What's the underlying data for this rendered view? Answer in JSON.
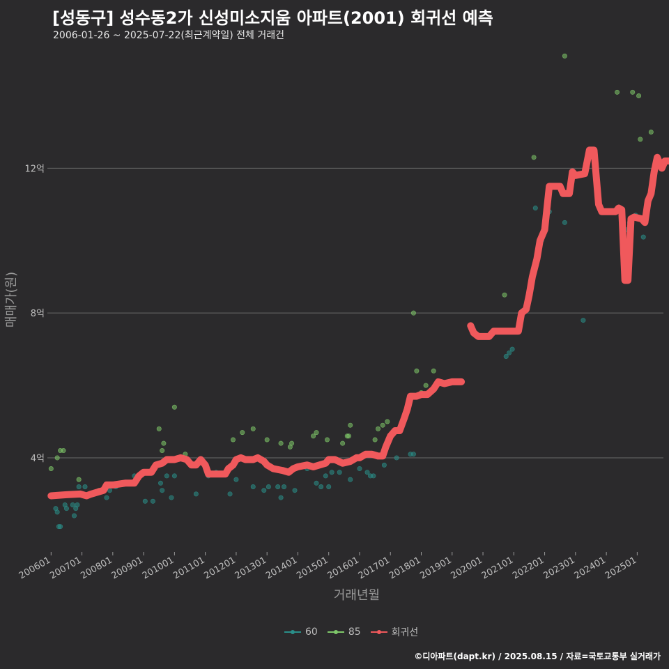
{
  "title": "[성동구] 성수동2가 신성미소지움 아파트(2001) 회귀선 예측",
  "subtitle": "2006-01-26 ~ 2025-07-22(최근계약일) 전체 거래건",
  "caption": "©디아파트(dapt.kr) / 2025.08.15 / 자료=국토교통부 실거래가",
  "colors": {
    "background": "#2b2a2c",
    "grid": "#6a6a6a",
    "s60": "#2a8f8a",
    "s85": "#7fc86a",
    "regression": "#f0595c"
  },
  "legend": [
    {
      "label": "60",
      "color": "#2a8f8a"
    },
    {
      "label": "85",
      "color": "#7fc86a"
    },
    {
      "label": "회귀선",
      "color": "#f0595c"
    }
  ],
  "chart_data": {
    "type": "scatter",
    "xlabel": "거래년월",
    "ylabel": "매매가(원)",
    "x_ticks": [
      "200601",
      "200701",
      "200801",
      "200901",
      "201001",
      "201101",
      "201201",
      "201301",
      "201401",
      "201501",
      "201601",
      "201701",
      "201801",
      "201901",
      "202001",
      "202101",
      "202201",
      "202301",
      "202401",
      "202501"
    ],
    "y_ticks": [
      {
        "value": 4,
        "label": "4억"
      },
      {
        "value": 8,
        "label": "8억"
      },
      {
        "value": 12,
        "label": "12억"
      }
    ],
    "xlim": [
      2005.88,
      2025.85
    ],
    "ylim": [
      1.4,
      15.3
    ],
    "y_unit": "억",
    "series": [
      {
        "name": "60",
        "points": [
          [
            2006.15,
            2.6
          ],
          [
            2006.2,
            2.5
          ],
          [
            2006.25,
            2.1
          ],
          [
            2006.3,
            2.1
          ],
          [
            2006.45,
            2.7
          ],
          [
            2006.5,
            2.6
          ],
          [
            2006.7,
            2.7
          ],
          [
            2006.75,
            2.4
          ],
          [
            2006.8,
            2.6
          ],
          [
            2006.85,
            2.7
          ],
          [
            2006.9,
            3.2
          ],
          [
            2007.1,
            3.2
          ],
          [
            2007.4,
            3.0
          ],
          [
            2007.8,
            2.9
          ],
          [
            2007.9,
            3.1
          ],
          [
            2008.1,
            3.2
          ],
          [
            2008.3,
            3.3
          ],
          [
            2008.5,
            3.3
          ],
          [
            2008.7,
            3.5
          ],
          [
            2009.05,
            2.8
          ],
          [
            2009.3,
            2.8
          ],
          [
            2009.55,
            3.3
          ],
          [
            2009.6,
            3.1
          ],
          [
            2009.75,
            3.5
          ],
          [
            2009.9,
            2.9
          ],
          [
            2010.0,
            3.5
          ],
          [
            2010.7,
            3.0
          ],
          [
            2011.1,
            3.5
          ],
          [
            2011.35,
            3.6
          ],
          [
            2011.8,
            3.0
          ],
          [
            2012.0,
            3.4
          ],
          [
            2012.55,
            3.2
          ],
          [
            2012.9,
            3.1
          ],
          [
            2013.05,
            3.2
          ],
          [
            2013.35,
            3.2
          ],
          [
            2013.45,
            2.9
          ],
          [
            2013.55,
            3.2
          ],
          [
            2013.9,
            3.1
          ],
          [
            2014.3,
            3.7
          ],
          [
            2014.6,
            3.3
          ],
          [
            2014.75,
            3.2
          ],
          [
            2014.9,
            3.5
          ],
          [
            2015.0,
            3.2
          ],
          [
            2015.1,
            3.6
          ],
          [
            2015.35,
            3.6
          ],
          [
            2015.7,
            3.4
          ],
          [
            2016.0,
            3.7
          ],
          [
            2016.25,
            3.6
          ],
          [
            2016.35,
            3.5
          ],
          [
            2016.45,
            3.5
          ],
          [
            2016.8,
            3.8
          ],
          [
            2017.2,
            4.0
          ],
          [
            2017.65,
            4.1
          ],
          [
            2017.75,
            4.1
          ],
          [
            2020.75,
            6.8
          ],
          [
            2020.85,
            6.9
          ],
          [
            2020.95,
            7.0
          ],
          [
            2021.7,
            10.9
          ],
          [
            2021.9,
            10.0
          ],
          [
            2022.15,
            10.8
          ],
          [
            2022.65,
            10.5
          ],
          [
            2023.25,
            7.8
          ],
          [
            2024.65,
            10.3
          ],
          [
            2024.75,
            10.5
          ],
          [
            2024.95,
            10.7
          ],
          [
            2025.2,
            10.1
          ]
        ]
      },
      {
        "name": "85",
        "points": [
          [
            2006.0,
            3.7
          ],
          [
            2006.2,
            4.0
          ],
          [
            2006.3,
            4.2
          ],
          [
            2006.4,
            4.2
          ],
          [
            2006.9,
            3.4
          ],
          [
            2007.55,
            3.1
          ],
          [
            2009.5,
            4.8
          ],
          [
            2009.6,
            4.2
          ],
          [
            2009.65,
            4.4
          ],
          [
            2010.0,
            5.4
          ],
          [
            2010.35,
            4.1
          ],
          [
            2011.9,
            4.5
          ],
          [
            2012.2,
            4.7
          ],
          [
            2012.55,
            4.8
          ],
          [
            2013.0,
            4.5
          ],
          [
            2013.45,
            4.4
          ],
          [
            2013.75,
            4.3
          ],
          [
            2013.8,
            4.4
          ],
          [
            2014.5,
            4.6
          ],
          [
            2014.6,
            4.7
          ],
          [
            2014.95,
            4.5
          ],
          [
            2015.45,
            4.4
          ],
          [
            2015.6,
            4.6
          ],
          [
            2015.65,
            4.6
          ],
          [
            2015.7,
            4.9
          ],
          [
            2016.5,
            4.5
          ],
          [
            2016.6,
            4.8
          ],
          [
            2016.75,
            4.9
          ],
          [
            2016.9,
            5.0
          ],
          [
            2017.75,
            8.0
          ],
          [
            2017.85,
            6.4
          ],
          [
            2018.0,
            5.8
          ],
          [
            2018.15,
            6.0
          ],
          [
            2018.4,
            6.4
          ],
          [
            2020.7,
            8.5
          ],
          [
            2021.1,
            7.5
          ],
          [
            2021.65,
            12.3
          ],
          [
            2022.65,
            15.1
          ],
          [
            2024.35,
            14.1
          ],
          [
            2024.85,
            14.1
          ],
          [
            2025.05,
            14.0
          ],
          [
            2025.1,
            12.8
          ],
          [
            2025.45,
            13.0
          ]
        ]
      }
    ],
    "regression": [
      [
        [
          2006.0,
          2.95
        ],
        [
          2006.5,
          2.98
        ],
        [
          2006.95,
          3.0
        ],
        [
          2007.15,
          2.95
        ],
        [
          2007.3,
          3.0
        ],
        [
          2007.5,
          3.05
        ],
        [
          2007.7,
          3.1
        ],
        [
          2007.8,
          3.25
        ],
        [
          2008.0,
          3.25
        ],
        [
          2008.4,
          3.3
        ],
        [
          2008.7,
          3.3
        ],
        [
          2008.85,
          3.5
        ],
        [
          2009.0,
          3.6
        ],
        [
          2009.25,
          3.6
        ],
        [
          2009.4,
          3.8
        ],
        [
          2009.6,
          3.85
        ],
        [
          2009.75,
          3.95
        ],
        [
          2010.0,
          3.95
        ],
        [
          2010.2,
          4.0
        ],
        [
          2010.4,
          3.95
        ],
        [
          2010.55,
          3.8
        ],
        [
          2010.7,
          3.8
        ],
        [
          2010.85,
          3.95
        ],
        [
          2011.0,
          3.8
        ],
        [
          2011.1,
          3.55
        ],
        [
          2011.5,
          3.55
        ],
        [
          2011.65,
          3.55
        ],
        [
          2011.75,
          3.7
        ],
        [
          2011.9,
          3.8
        ],
        [
          2012.0,
          3.95
        ],
        [
          2012.15,
          4.0
        ],
        [
          2012.3,
          3.95
        ],
        [
          2012.55,
          3.95
        ],
        [
          2012.7,
          4.0
        ],
        [
          2012.9,
          3.9
        ],
        [
          2013.0,
          3.8
        ],
        [
          2013.2,
          3.7
        ],
        [
          2013.5,
          3.65
        ],
        [
          2013.7,
          3.6
        ],
        [
          2013.85,
          3.7
        ],
        [
          2014.0,
          3.75
        ],
        [
          2014.3,
          3.8
        ],
        [
          2014.5,
          3.75
        ],
        [
          2014.7,
          3.8
        ],
        [
          2014.9,
          3.85
        ],
        [
          2015.0,
          3.95
        ],
        [
          2015.2,
          3.95
        ],
        [
          2015.45,
          3.85
        ],
        [
          2015.7,
          3.9
        ],
        [
          2015.9,
          4.0
        ],
        [
          2016.0,
          4.0
        ],
        [
          2016.2,
          4.1
        ],
        [
          2016.4,
          4.1
        ],
        [
          2016.6,
          4.05
        ],
        [
          2016.75,
          4.05
        ],
        [
          2016.85,
          4.3
        ],
        [
          2017.0,
          4.6
        ],
        [
          2017.15,
          4.75
        ],
        [
          2017.3,
          4.75
        ],
        [
          2017.45,
          5.1
        ],
        [
          2017.55,
          5.35
        ],
        [
          2017.65,
          5.7
        ],
        [
          2017.85,
          5.7
        ],
        [
          2018.0,
          5.75
        ],
        [
          2018.2,
          5.75
        ],
        [
          2018.4,
          5.9
        ],
        [
          2018.55,
          6.1
        ],
        [
          2018.75,
          6.05
        ],
        [
          2019.0,
          6.1
        ],
        [
          2019.3,
          6.1
        ]
      ],
      [
        [
          2019.6,
          7.65
        ],
        [
          2019.7,
          7.45
        ],
        [
          2019.85,
          7.35
        ],
        [
          2020.2,
          7.35
        ],
        [
          2020.35,
          7.5
        ],
        [
          2020.6,
          7.5
        ],
        [
          2021.15,
          7.5
        ],
        [
          2021.25,
          8.0
        ],
        [
          2021.4,
          8.1
        ],
        [
          2021.5,
          8.5
        ],
        [
          2021.6,
          9.0
        ],
        [
          2021.75,
          9.5
        ],
        [
          2021.85,
          10.0
        ],
        [
          2022.0,
          10.3
        ],
        [
          2022.15,
          11.5
        ],
        [
          2022.5,
          11.5
        ],
        [
          2022.6,
          11.3
        ],
        [
          2022.8,
          11.3
        ],
        [
          2022.9,
          11.9
        ],
        [
          2023.0,
          11.8
        ],
        [
          2023.3,
          11.85
        ],
        [
          2023.45,
          12.5
        ],
        [
          2023.6,
          12.5
        ],
        [
          2023.75,
          11.0
        ],
        [
          2023.85,
          10.8
        ],
        [
          2024.3,
          10.8
        ],
        [
          2024.4,
          10.9
        ],
        [
          2024.5,
          10.85
        ],
        [
          2024.6,
          8.9
        ],
        [
          2024.7,
          8.9
        ],
        [
          2024.8,
          10.6
        ],
        [
          2024.9,
          10.65
        ],
        [
          2025.15,
          10.6
        ],
        [
          2025.25,
          10.5
        ],
        [
          2025.35,
          11.1
        ],
        [
          2025.45,
          11.3
        ],
        [
          2025.55,
          11.9
        ],
        [
          2025.65,
          12.3
        ],
        [
          2025.75,
          12.1
        ],
        [
          2025.8,
          12.0
        ],
        [
          2025.9,
          12.2
        ],
        [
          2026.2,
          12.2
        ],
        [
          2026.35,
          11.95
        ],
        [
          2026.6,
          11.95
        ]
      ]
    ]
  }
}
